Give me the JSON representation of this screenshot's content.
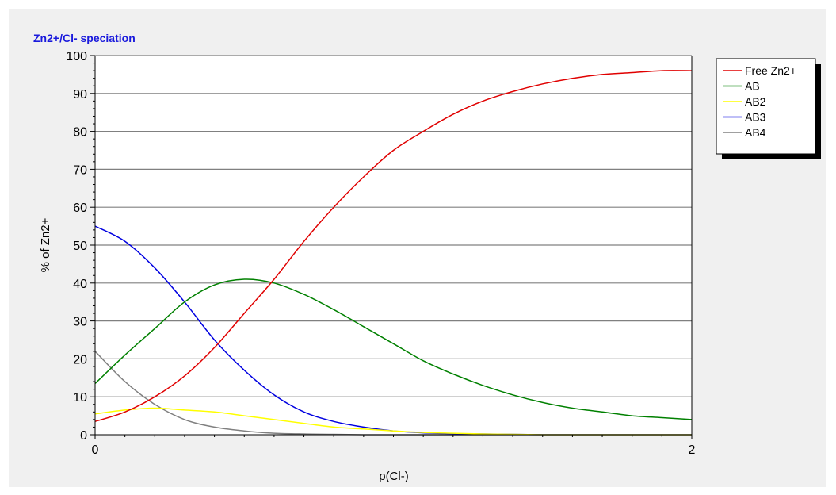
{
  "chart_data": {
    "type": "line",
    "title": "Zn2+/Cl- speciation",
    "xlabel": "p(Cl-)",
    "ylabel": "% of Zn2+",
    "xlim": [
      0,
      2
    ],
    "ylim": [
      0,
      100
    ],
    "xticks": [
      0,
      2
    ],
    "yticks": [
      0,
      10,
      20,
      30,
      40,
      50,
      60,
      70,
      80,
      90,
      100
    ],
    "grid": "horizontal",
    "legend_position": "right",
    "series": [
      {
        "name": "Free Zn2+",
        "color": "#e00000",
        "x": [
          0,
          0.1,
          0.2,
          0.3,
          0.4,
          0.5,
          0.6,
          0.7,
          0.8,
          0.9,
          1.0,
          1.1,
          1.2,
          1.3,
          1.4,
          1.5,
          1.6,
          1.7,
          1.8,
          1.9,
          2.0
        ],
        "y": [
          3.5,
          6,
          10,
          15.5,
          23,
          32,
          41,
          51,
          60,
          68,
          75,
          80,
          84.5,
          88,
          90.5,
          92.5,
          94,
          95,
          95.5,
          96,
          96
        ]
      },
      {
        "name": "AB",
        "color": "#008000",
        "x": [
          0,
          0.1,
          0.2,
          0.3,
          0.4,
          0.5,
          0.6,
          0.7,
          0.8,
          0.9,
          1.0,
          1.1,
          1.2,
          1.3,
          1.4,
          1.5,
          1.6,
          1.7,
          1.8,
          1.9,
          2.0
        ],
        "y": [
          13.5,
          21,
          28,
          35,
          39.5,
          41,
          40,
          37,
          33,
          28.5,
          24,
          19.5,
          16,
          13,
          10.5,
          8.5,
          7,
          6,
          5,
          4.5,
          4
        ]
      },
      {
        "name": "AB2",
        "color": "#ffff00",
        "x": [
          0,
          0.1,
          0.2,
          0.3,
          0.4,
          0.5,
          0.6,
          0.7,
          0.8,
          0.9,
          1.0,
          1.1,
          1.2,
          1.3,
          1.4,
          1.5,
          1.6,
          1.7,
          1.8,
          1.9,
          2.0
        ],
        "y": [
          5.5,
          6.5,
          7,
          6.5,
          6,
          5,
          4,
          3,
          2,
          1.5,
          1,
          0.6,
          0.4,
          0.2,
          0.1,
          0,
          0,
          0,
          0,
          0,
          0
        ]
      },
      {
        "name": "AB3",
        "color": "#0000e0",
        "x": [
          0,
          0.1,
          0.2,
          0.3,
          0.4,
          0.5,
          0.6,
          0.7,
          0.8,
          0.9,
          1.0,
          1.1,
          1.2,
          1.3,
          1.4,
          1.5,
          1.6,
          1.7,
          1.8,
          1.9,
          2.0
        ],
        "y": [
          55,
          51,
          44,
          35,
          25,
          17,
          10.5,
          6,
          3.5,
          2,
          1,
          0.5,
          0.3,
          0.2,
          0.1,
          0,
          0,
          0,
          0,
          0,
          0
        ]
      },
      {
        "name": "AB4",
        "color": "#808080",
        "x": [
          0,
          0.1,
          0.2,
          0.3,
          0.4,
          0.5,
          0.6,
          0.7,
          0.8,
          0.9,
          1.0,
          1.1,
          1.2,
          1.3,
          1.4,
          1.5,
          1.6,
          1.7,
          1.8,
          1.9,
          2.0
        ],
        "y": [
          22,
          14,
          8,
          4,
          2,
          1,
          0.4,
          0.2,
          0.1,
          0,
          0,
          0,
          0,
          0,
          0,
          0,
          0,
          0,
          0,
          0,
          0
        ]
      }
    ]
  }
}
